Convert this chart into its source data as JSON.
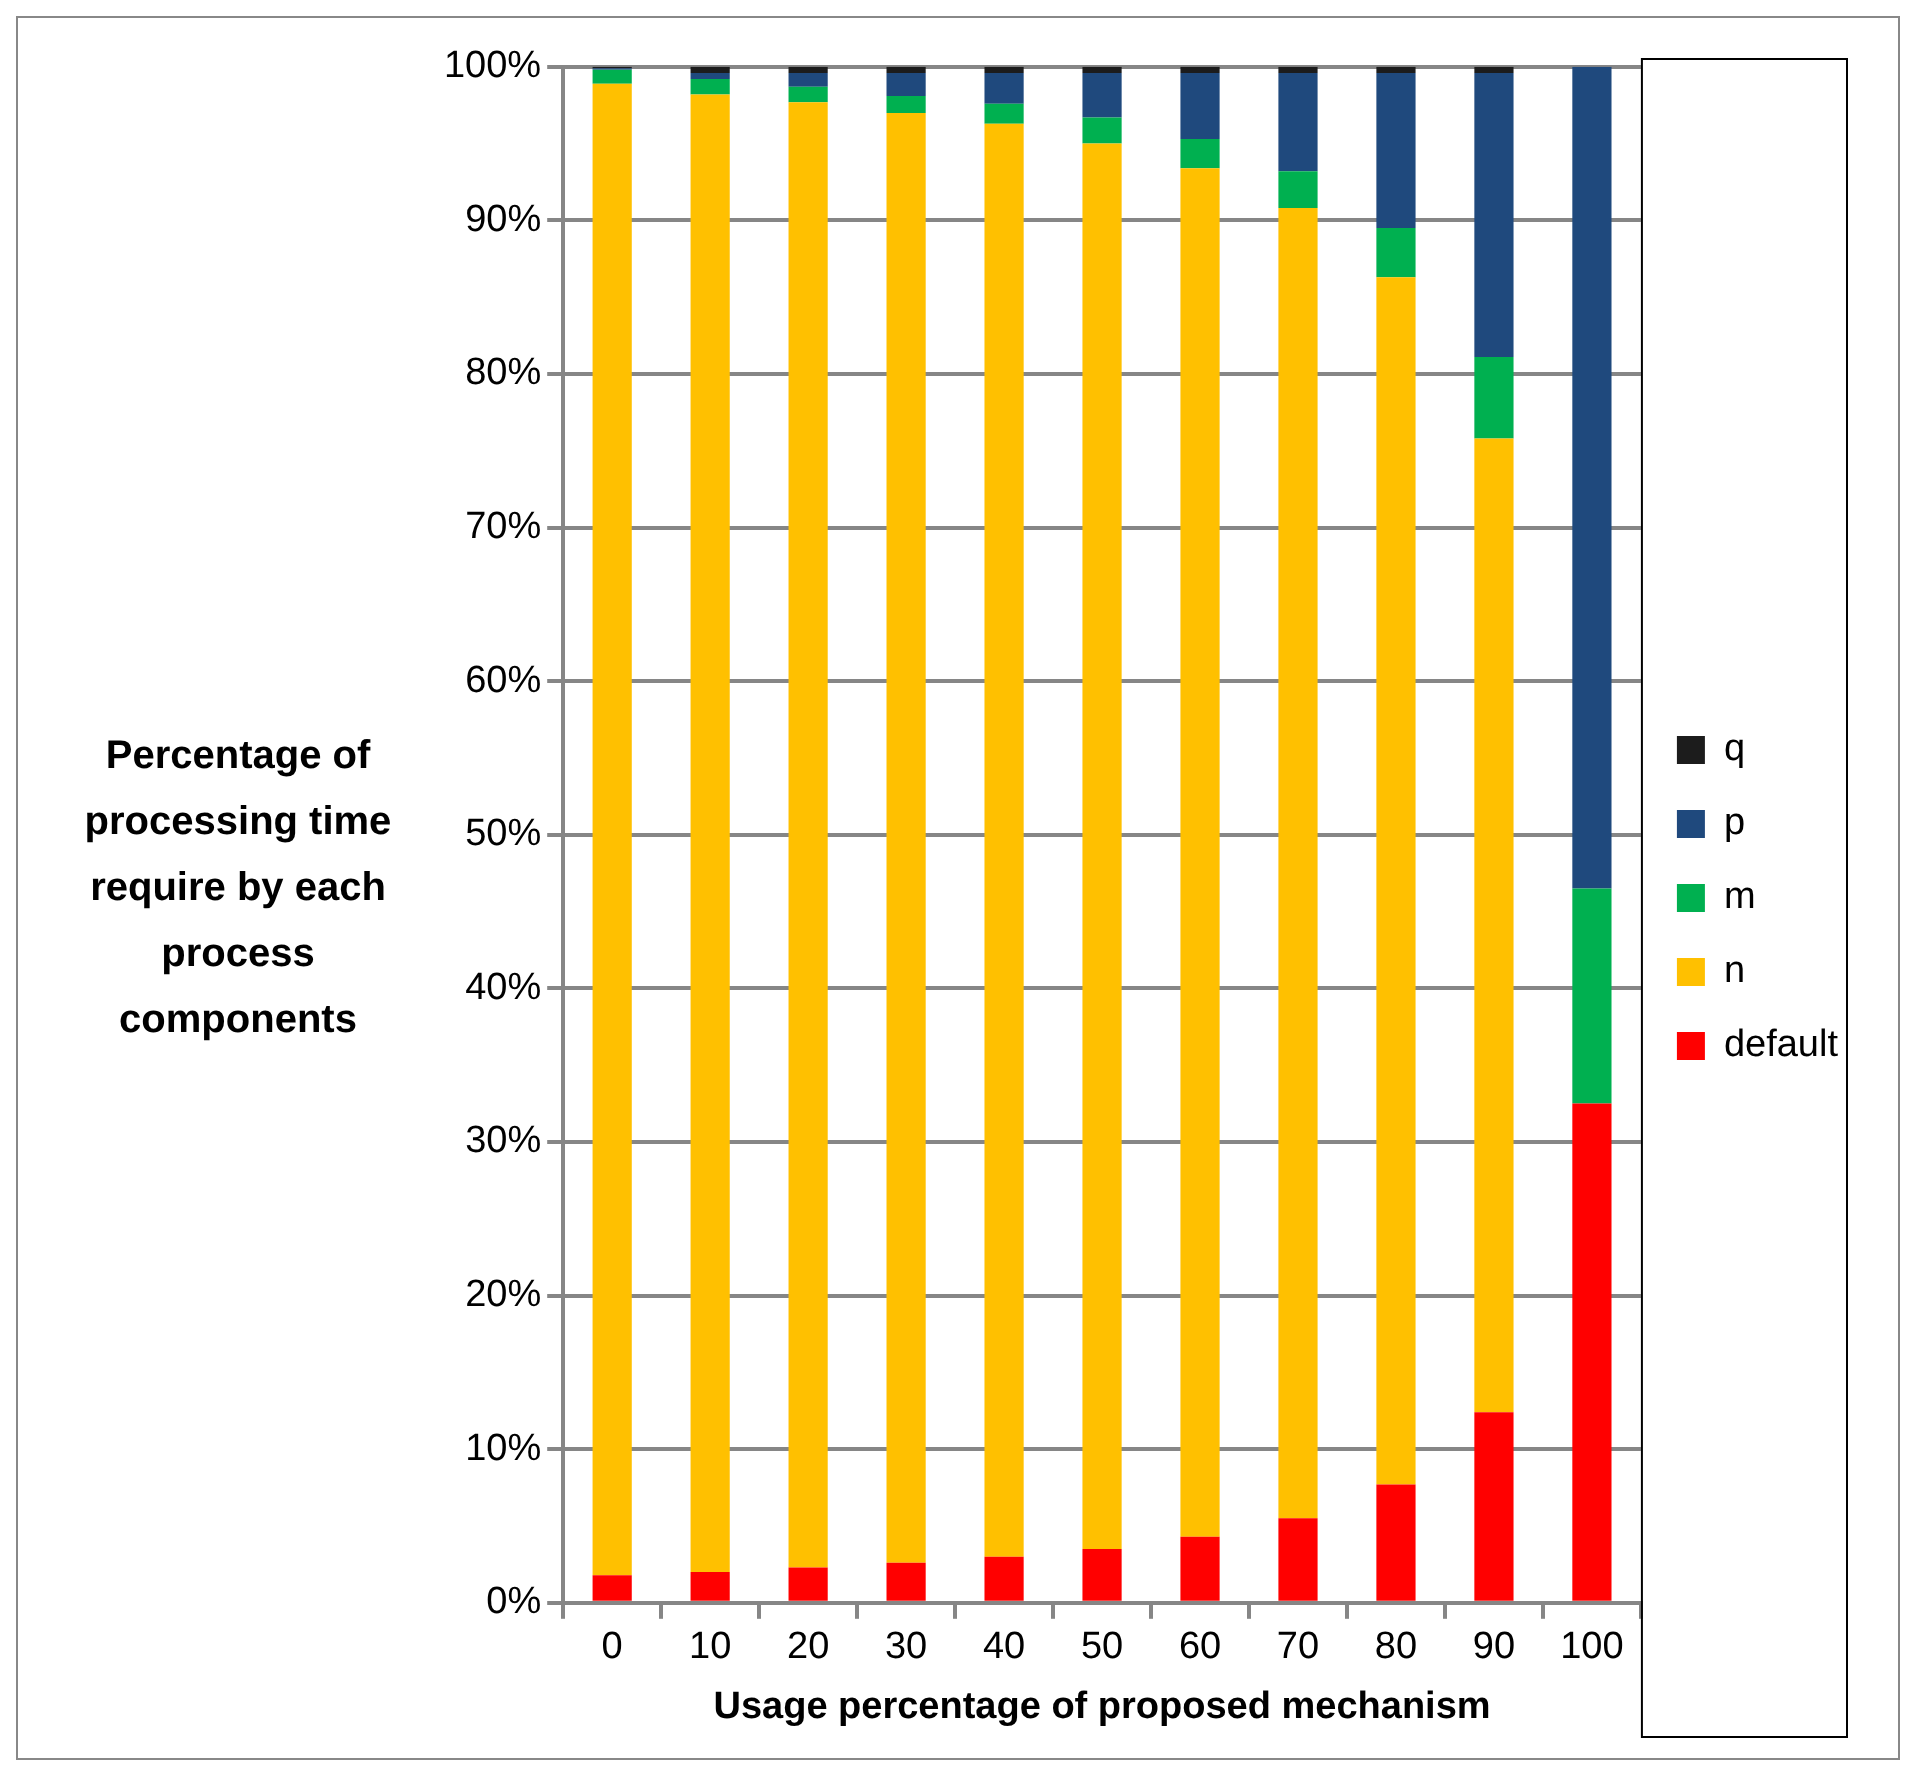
{
  "chart_data": {
    "type": "bar",
    "stacked": true,
    "xlabel": "Usage percentage of proposed mechanism",
    "ylabel": "Percentage of processing time require by each process components",
    "categories": [
      "0",
      "10",
      "20",
      "30",
      "40",
      "50",
      "60",
      "70",
      "80",
      "90",
      "100"
    ],
    "series": [
      {
        "name": "default",
        "color": "#ff0000",
        "values": [
          1.8,
          2.0,
          2.3,
          2.6,
          3.0,
          3.5,
          4.3,
          5.5,
          7.7,
          12.4,
          32.5
        ]
      },
      {
        "name": "n",
        "color": "#ffc000",
        "values": [
          97.1,
          96.2,
          95.4,
          94.4,
          93.3,
          91.5,
          89.1,
          85.3,
          78.6,
          63.4,
          0
        ]
      },
      {
        "name": "m",
        "color": "#00b050",
        "values": [
          0.9,
          1.0,
          1.0,
          1.1,
          1.3,
          1.7,
          1.9,
          2.4,
          3.2,
          5.3,
          14.0
        ]
      },
      {
        "name": "p",
        "color": "#1f497d",
        "values": [
          0.1,
          0.4,
          0.9,
          1.5,
          2.0,
          2.9,
          4.3,
          6.4,
          10.1,
          18.5,
          53.5
        ]
      },
      {
        "name": "q",
        "color": "#1c1c1c",
        "values": [
          0.1,
          0.4,
          0.4,
          0.4,
          0.4,
          0.4,
          0.4,
          0.4,
          0.4,
          0.4,
          0
        ]
      }
    ],
    "ylim": [
      0,
      100
    ],
    "yticks": [
      {
        "value": 0,
        "label": "0%"
      },
      {
        "value": 10,
        "label": "10%"
      },
      {
        "value": 20,
        "label": "20%"
      },
      {
        "value": 30,
        "label": "30%"
      },
      {
        "value": 40,
        "label": "40%"
      },
      {
        "value": 50,
        "label": "50%"
      },
      {
        "value": 60,
        "label": "60%"
      },
      {
        "value": 70,
        "label": "70%"
      },
      {
        "value": 80,
        "label": "80%"
      },
      {
        "value": 90,
        "label": "90%"
      },
      {
        "value": 100,
        "label": "100%"
      }
    ],
    "grid": "y",
    "legend": "right"
  }
}
